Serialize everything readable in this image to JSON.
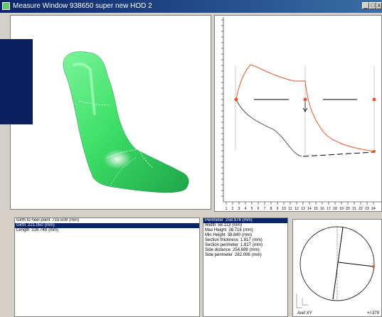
{
  "window": {
    "title": "Measure Window   938650 super new HOD 2",
    "minimize_glyph": "_",
    "maximize_glyph": "□",
    "close_glyph": "x"
  },
  "colors": {
    "titlebar": "#0a246a",
    "shoe_green": "#3ee068",
    "selection": "#0a246a",
    "profile_top_line": "#e8552b",
    "profile_bottom_line": "#555555",
    "marker": "#e8552b"
  },
  "measurements_left": [
    {
      "label": "Girth to heel point",
      "value": "715.508",
      "unit": "(mm)"
    },
    {
      "label": "Girth",
      "value": "221.050",
      "unit": "(mm)"
    },
    {
      "label": "Length",
      "value": "228.748",
      "unit": "(mm)"
    }
  ],
  "measurements_mid": [
    {
      "label": "Perimeter",
      "value": "258.978",
      "unit": "(mm)"
    },
    {
      "label": "Width",
      "value": "58.113",
      "unit": "(mm)"
    },
    {
      "label": "Max Height",
      "value": "38.718",
      "unit": "(mm)"
    },
    {
      "label": "Min Height",
      "value": "38.840",
      "unit": "(mm)"
    },
    {
      "label": "Section thickness",
      "value": "1.817",
      "unit": "(mm)"
    },
    {
      "label": "Section perimeter",
      "value": "1.817",
      "unit": "(mm)"
    },
    {
      "label": "Side distance",
      "value": "254.698",
      "unit": "(mm)"
    },
    {
      "label": "Side perimeter",
      "value": "282.006",
      "unit": "(mm)"
    }
  ],
  "profile": {
    "ruler_ticks": [
      "1",
      "2",
      "3",
      "4",
      "5",
      "6",
      "7",
      "8",
      "9",
      "10",
      "11",
      "12",
      "13",
      "14",
      "15",
      "16",
      "17",
      "18",
      "19",
      "20",
      "21",
      "22",
      "23",
      "24"
    ]
  },
  "circle_view": {
    "footer_left": "Aref XY",
    "footer_right": "+/-379"
  }
}
